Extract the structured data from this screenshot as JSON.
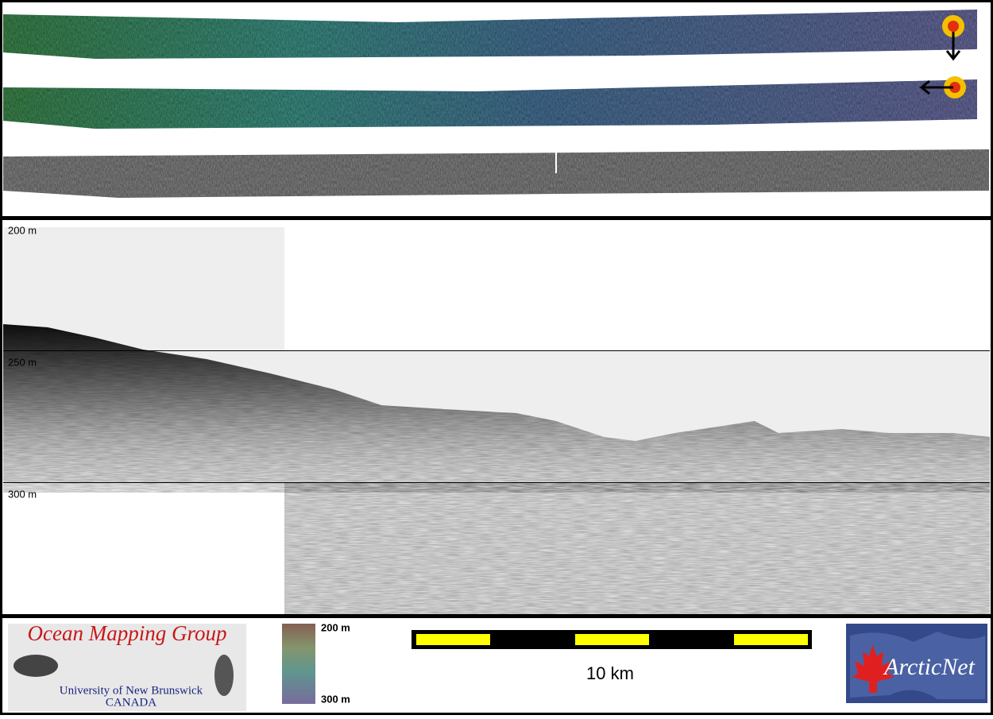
{
  "depth_labels": [
    "200 m",
    "250 m",
    "300 m"
  ],
  "logo": {
    "title": "Ocean Mapping Group",
    "university": "University of New Brunswick",
    "country": "CANADA"
  },
  "colorbar": {
    "top_label": "200 m",
    "bottom_label": "300 m"
  },
  "scale_bar": {
    "label": "10 km"
  },
  "partner_logo": {
    "name": "ArcticNet"
  }
}
